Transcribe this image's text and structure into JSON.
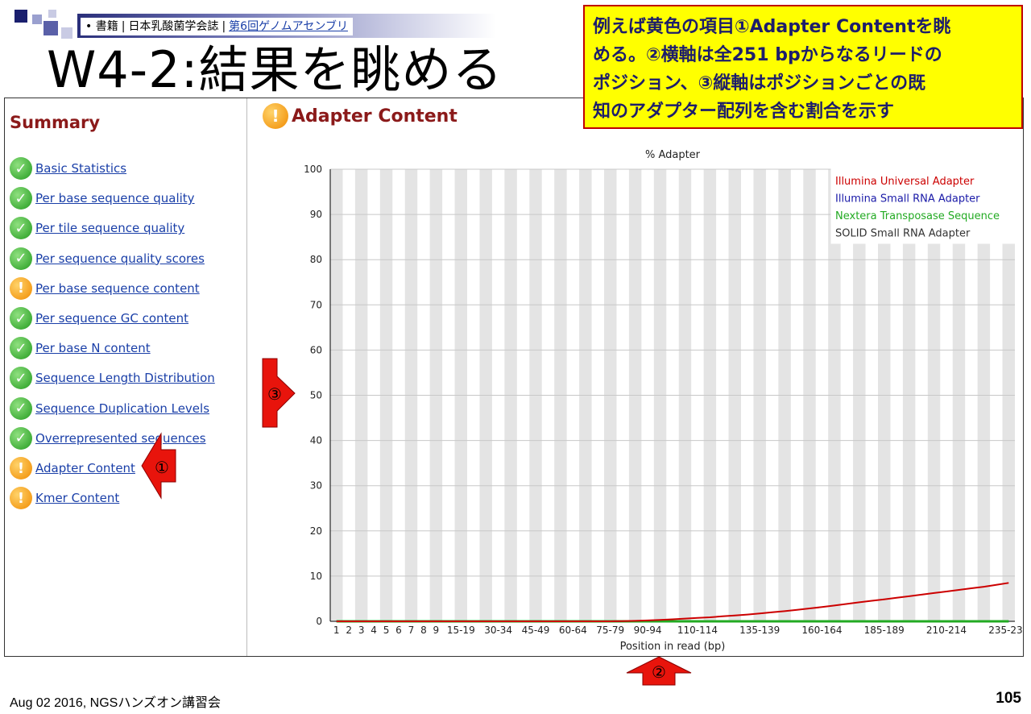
{
  "slide": {
    "crumb_bullet": "•",
    "crumb_book": "書籍",
    "crumb_society": "日本乳酸菌学会誌",
    "crumb_link": "第6回ゲノムアセンブリ",
    "title": "W4-2:結果を眺める",
    "note_lines": [
      "例えば黄色の項目①Adapter Contentを眺",
      "める。②横軸は全251 bpからなるリードの",
      "ポジション、③縦軸はポジションごとの既",
      "知のアダプター配列を含む割合を示す"
    ],
    "footer_left": "Aug 02 2016, NGSハンズオン講習会",
    "page_number": "105",
    "callouts": {
      "c1": "①",
      "c2": "②",
      "c3": "③"
    }
  },
  "summary": {
    "title": "Summary",
    "modules": [
      {
        "label": "Basic Statistics",
        "status": "pass"
      },
      {
        "label": "Per base sequence quality",
        "status": "pass"
      },
      {
        "label": "Per tile sequence quality",
        "status": "pass"
      },
      {
        "label": "Per sequence quality scores",
        "status": "pass"
      },
      {
        "label": "Per base sequence content",
        "status": "warn"
      },
      {
        "label": "Per sequence GC content",
        "status": "pass"
      },
      {
        "label": "Per base N content",
        "status": "pass"
      },
      {
        "label": "Sequence Length Distribution",
        "status": "pass"
      },
      {
        "label": "Sequence Duplication Levels",
        "status": "pass"
      },
      {
        "label": "Overrepresented sequences",
        "status": "pass"
      },
      {
        "label": "Adapter Content",
        "status": "warn"
      },
      {
        "label": "Kmer Content",
        "status": "warn"
      }
    ]
  },
  "module_header": "Adapter Content",
  "colors": {
    "illumina_universal": "#cc0000",
    "illumina_small_rna": "#1a1aa8",
    "nextera": "#22aa22",
    "solid": "#333333",
    "warn": "#f08a00",
    "pass": "#239b1f"
  },
  "chart_data": {
    "type": "line",
    "title": "% Adapter",
    "xlabel": "Position in read (bp)",
    "ylabel": "",
    "ylim": [
      0,
      100
    ],
    "yticks": [
      0,
      10,
      20,
      30,
      40,
      50,
      60,
      70,
      80,
      90,
      100
    ],
    "x": [
      "1",
      "2",
      "3",
      "4",
      "5",
      "6",
      "7",
      "8",
      "9",
      "10-14",
      "15-19",
      "20-24",
      "25-29",
      "30-34",
      "35-39",
      "40-44",
      "45-49",
      "50-54",
      "55-59",
      "60-64",
      "65-69",
      "70-74",
      "75-79",
      "80-84",
      "85-89",
      "90-94",
      "95-99",
      "100-104",
      "105-109",
      "110-114",
      "115-119",
      "120-124",
      "125-129",
      "130-134",
      "135-139",
      "140-144",
      "145-149",
      "150-154",
      "155-159",
      "160-164",
      "165-169",
      "170-174",
      "175-179",
      "180-184",
      "185-189",
      "190-194",
      "195-199",
      "200-204",
      "205-209",
      "210-214",
      "215-219",
      "220-224",
      "225-229",
      "230-234",
      "235-239"
    ],
    "x_tick_labels": [
      "1",
      "2",
      "3",
      "4",
      "5",
      "6",
      "7",
      "8",
      "9",
      "15-19",
      "30-34",
      "45-49",
      "60-64",
      "75-79",
      "90-94",
      "110-114",
      "135-139",
      "160-164",
      "185-189",
      "210-214",
      "235-239"
    ],
    "grid": "alternating vertical bands",
    "legend_placement": "top-right",
    "series": [
      {
        "name": "Illumina Universal Adapter",
        "values": [
          0,
          0,
          0,
          0,
          0,
          0,
          0,
          0,
          0,
          0,
          0,
          0,
          0,
          0,
          0,
          0,
          0,
          0,
          0,
          0,
          0,
          0,
          0,
          0.05,
          0.1,
          0.2,
          0.3,
          0.45,
          0.6,
          0.75,
          0.9,
          1.1,
          1.3,
          1.5,
          1.75,
          2.0,
          2.25,
          2.55,
          2.85,
          3.15,
          3.5,
          3.85,
          4.2,
          4.55,
          4.85,
          5.2,
          5.55,
          5.9,
          6.25,
          6.6,
          6.95,
          7.3,
          7.65,
          8.05,
          8.5
        ]
      },
      {
        "name": "Illumina Small RNA Adapter",
        "values": [
          0,
          0,
          0,
          0,
          0,
          0,
          0,
          0,
          0,
          0,
          0,
          0,
          0,
          0,
          0,
          0,
          0,
          0,
          0,
          0,
          0,
          0,
          0,
          0,
          0,
          0,
          0,
          0,
          0,
          0,
          0,
          0,
          0,
          0,
          0,
          0,
          0,
          0,
          0,
          0,
          0,
          0,
          0,
          0,
          0,
          0,
          0,
          0,
          0,
          0,
          0,
          0,
          0,
          0,
          0
        ]
      },
      {
        "name": "Nextera Transposase Sequence",
        "values": [
          0,
          0,
          0,
          0,
          0,
          0,
          0,
          0,
          0,
          0,
          0,
          0,
          0,
          0,
          0,
          0,
          0,
          0,
          0,
          0,
          0,
          0,
          0,
          0,
          0,
          0,
          0,
          0,
          0,
          0,
          0,
          0,
          0,
          0,
          0,
          0,
          0,
          0,
          0,
          0,
          0,
          0,
          0,
          0,
          0,
          0,
          0,
          0,
          0,
          0,
          0,
          0,
          0,
          0,
          0
        ]
      },
      {
        "name": "SOLID Small RNA Adapter",
        "values": [
          0,
          0,
          0,
          0,
          0,
          0,
          0,
          0,
          0,
          0,
          0,
          0,
          0,
          0,
          0,
          0,
          0,
          0,
          0,
          0,
          0,
          0,
          0,
          0,
          0,
          0,
          0,
          0,
          0,
          0,
          0,
          0,
          0,
          0,
          0,
          0,
          0,
          0,
          0,
          0,
          0,
          0,
          0,
          0,
          0,
          0,
          0,
          0,
          0,
          0,
          0,
          0,
          0,
          0,
          0
        ]
      }
    ]
  }
}
